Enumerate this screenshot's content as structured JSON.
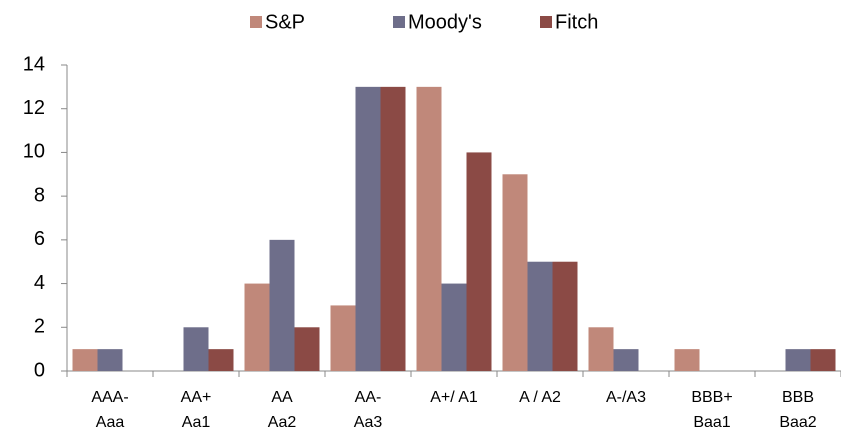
{
  "chart_data": {
    "type": "bar",
    "categories": [
      [
        "AAA-",
        "Aaa"
      ],
      [
        "AA+",
        "Aa1"
      ],
      [
        "AA",
        "Aa2"
      ],
      [
        "AA-",
        "Aa3"
      ],
      [
        "A+/ A1"
      ],
      [
        "A / A2"
      ],
      [
        "A-/A3"
      ],
      [
        "BBB+",
        "Baa1"
      ],
      [
        "BBB",
        "Baa2"
      ]
    ],
    "series": [
      {
        "name": "S&P",
        "color": "#c0887a",
        "values": [
          1,
          0,
          4,
          3,
          13,
          9,
          2,
          1,
          0
        ]
      },
      {
        "name": "Moody's",
        "color": "#6e6e8a",
        "values": [
          1,
          2,
          6,
          13,
          4,
          5,
          1,
          0,
          1
        ]
      },
      {
        "name": "Fitch",
        "color": "#8b4a45",
        "values": [
          0,
          1,
          2,
          13,
          10,
          5,
          0,
          0,
          1
        ]
      }
    ],
    "ylim": [
      0,
      14
    ],
    "yticks": [
      0,
      2,
      4,
      6,
      8,
      10,
      12,
      14
    ],
    "legend": "top"
  }
}
